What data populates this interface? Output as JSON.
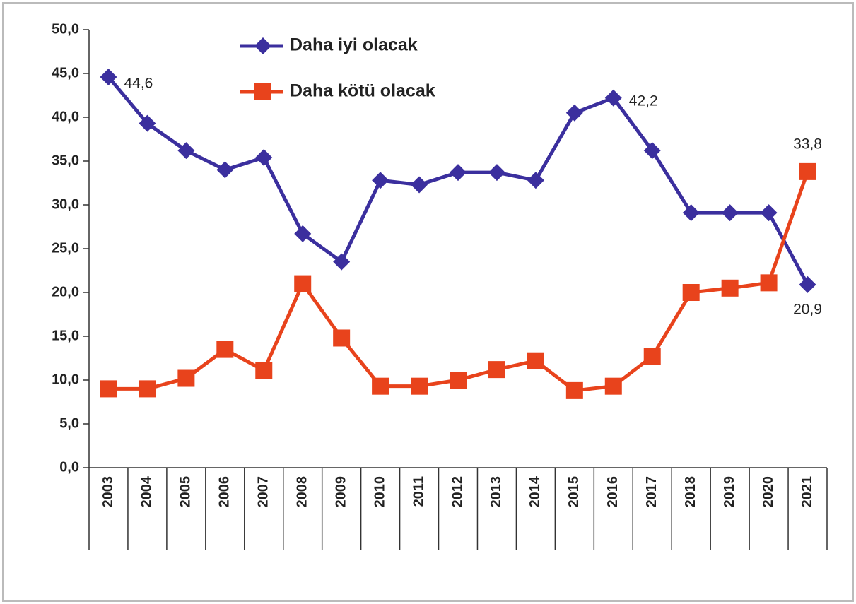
{
  "chart_data": {
    "type": "line",
    "categories": [
      "2003",
      "2004",
      "2005",
      "2006",
      "2007",
      "2008",
      "2009",
      "2010",
      "2011",
      "2012",
      "2013",
      "2014",
      "2015",
      "2016",
      "2017",
      "2018",
      "2019",
      "2020",
      "2021"
    ],
    "series": [
      {
        "name": "Daha iyi olacak",
        "color": "#3b2f9e",
        "marker": "diamond",
        "values": [
          44.6,
          39.3,
          36.2,
          34.0,
          35.4,
          26.7,
          23.5,
          32.8,
          32.3,
          33.7,
          33.7,
          32.8,
          40.5,
          42.2,
          36.2,
          29.1,
          29.1,
          29.1,
          20.9
        ],
        "value_labels": [
          "44,6",
          null,
          null,
          null,
          null,
          null,
          null,
          null,
          null,
          null,
          null,
          null,
          null,
          "42,2",
          null,
          null,
          null,
          null,
          "20,9"
        ]
      },
      {
        "name": "Daha kötü olacak",
        "color": "#e8431c",
        "marker": "square",
        "values": [
          9.0,
          9.0,
          10.2,
          13.5,
          11.1,
          21.0,
          14.8,
          9.3,
          9.3,
          10.0,
          11.2,
          12.2,
          8.8,
          9.3,
          12.7,
          20.0,
          20.5,
          21.1,
          33.8
        ],
        "value_labels": [
          null,
          null,
          null,
          null,
          null,
          null,
          null,
          null,
          null,
          null,
          null,
          null,
          null,
          null,
          null,
          null,
          null,
          null,
          "33,8"
        ]
      }
    ],
    "ylim": [
      0,
      50
    ],
    "yticks": [
      {
        "value": 0,
        "label": "0,0"
      },
      {
        "value": 5,
        "label": "5,0"
      },
      {
        "value": 10,
        "label": "10,0"
      },
      {
        "value": 15,
        "label": "15,0"
      },
      {
        "value": 20,
        "label": "20,0"
      },
      {
        "value": 25,
        "label": "25,0"
      },
      {
        "value": 30,
        "label": "30,0"
      },
      {
        "value": 35,
        "label": "35,0"
      },
      {
        "value": 40,
        "label": "40,0"
      },
      {
        "value": 45,
        "label": "45,0"
      },
      {
        "value": 50,
        "label": "50,0"
      }
    ],
    "legend": "top-left"
  }
}
